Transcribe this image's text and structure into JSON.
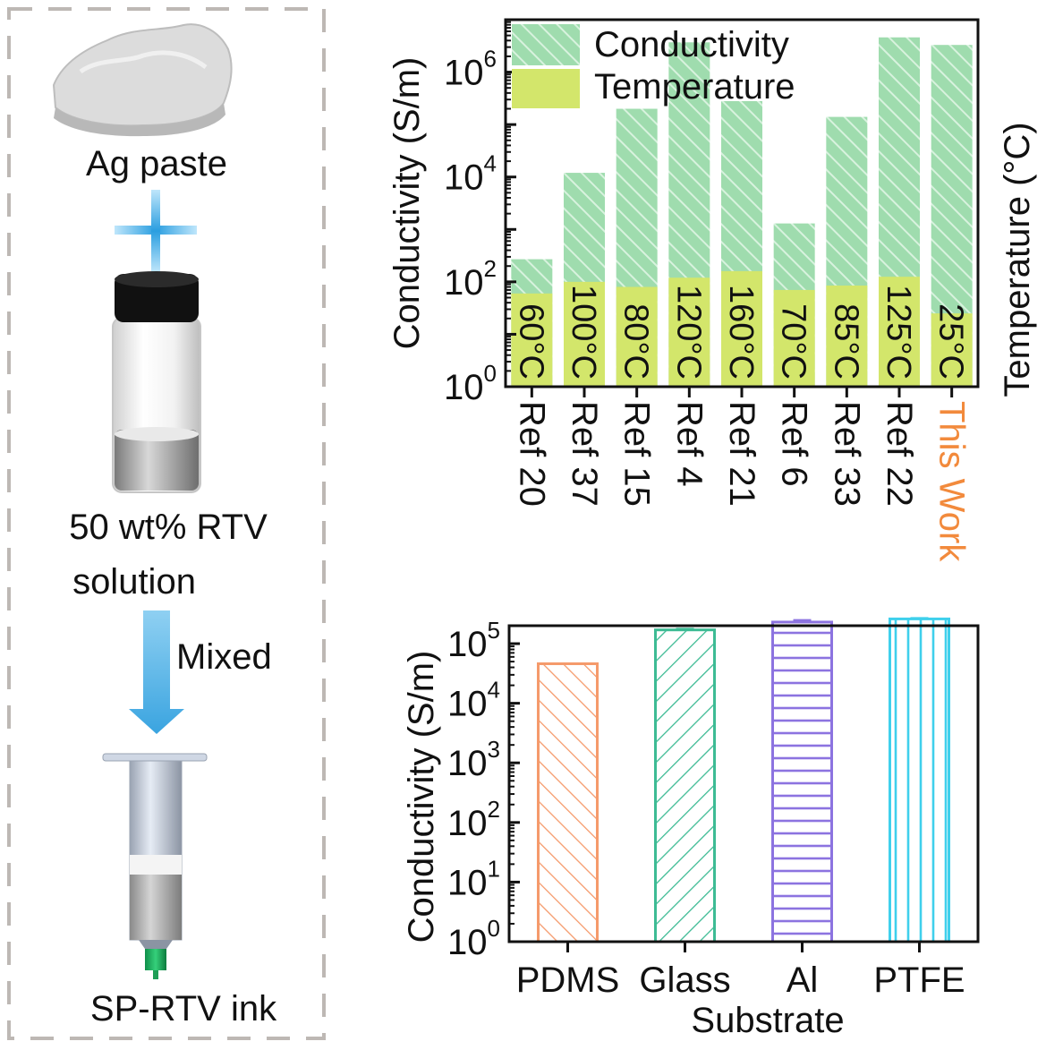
{
  "schematic": {
    "step1_label": "Ag paste",
    "step2_label_line1": "50 wt% RTV",
    "step2_label_line2": "solution",
    "arrow_label": "Mixed",
    "step3_label": "SP-RTV ink"
  },
  "colors": {
    "conductivity_fill": "#9fdcae",
    "conductivity_hatch": "#d8f2de",
    "temperature_fill": "#d3e66b",
    "highlight": "#f28a3c",
    "pdms": "#f59a6b",
    "glass": "#3dbb94",
    "al": "#8c73e0",
    "ptfe": "#3fd0ec"
  },
  "chart_data": [
    {
      "type": "bar",
      "scale": "log",
      "ylabel": "Conductivity (S/m)",
      "ylabel_right": "Temperature (°C)",
      "ylim": [
        1,
        10000000
      ],
      "yticks": [
        {
          "base": "10",
          "exp": "0",
          "value": 1
        },
        {
          "base": "10",
          "exp": "2",
          "value": 100
        },
        {
          "base": "10",
          "exp": "4",
          "value": 10000
        },
        {
          "base": "10",
          "exp": "6",
          "value": 1000000
        }
      ],
      "legend": {
        "position": "top-left",
        "conductivity": "Conductivity",
        "temperature": "Temperature"
      },
      "categories": [
        "Ref 20",
        "Ref 37",
        "Ref 15",
        "Ref 4",
        "Ref 21",
        "Ref 6",
        "Ref 33",
        "Ref 22",
        "This Work"
      ],
      "highlight_category": "This Work",
      "series": [
        {
          "name": "Conductivity",
          "values": [
            270,
            12000,
            200000,
            3700000,
            280000,
            1300,
            140000,
            4600000,
            3300000
          ]
        },
        {
          "name": "Temperature",
          "values": [
            60,
            100,
            80,
            120,
            160,
            70,
            85,
            125,
            25
          ]
        }
      ],
      "temperature_labels": [
        "60°C",
        "100°C",
        "80°C",
        "120°C",
        "160°C",
        "70°C",
        "85°C",
        "125°C",
        "25°C"
      ]
    },
    {
      "type": "bar",
      "scale": "log",
      "xlabel": "Substrate",
      "ylabel": "Conductivity (S/m)",
      "ylim": [
        1,
        200000
      ],
      "yticks": [
        {
          "base": "10",
          "exp": "0",
          "value": 1
        },
        {
          "base": "10",
          "exp": "1",
          "value": 10
        },
        {
          "base": "10",
          "exp": "2",
          "value": 100
        },
        {
          "base": "10",
          "exp": "3",
          "value": 1000
        },
        {
          "base": "10",
          "exp": "4",
          "value": 10000
        },
        {
          "base": "10",
          "exp": "5",
          "value": 100000
        }
      ],
      "categories": [
        "PDMS",
        "Glass",
        "Al",
        "PTFE"
      ],
      "values": [
        46000,
        170000,
        230000,
        260000
      ],
      "error": [
        0,
        5000,
        15000,
        5000
      ]
    }
  ]
}
